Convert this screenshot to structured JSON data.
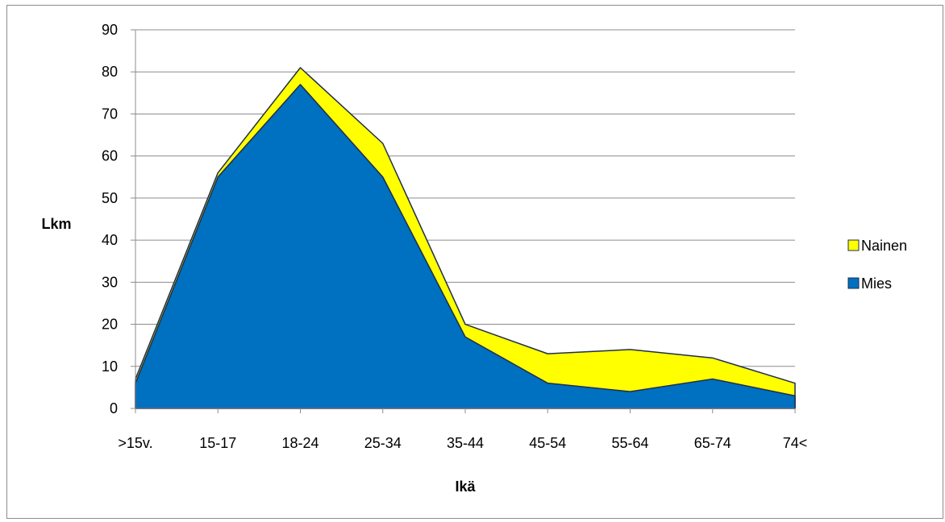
{
  "chart_data": {
    "type": "area",
    "stacked": true,
    "categories": [
      ">15v.",
      "15-17",
      "18-24",
      "25-34",
      "35-44",
      "45-54",
      "55-64",
      "65-74",
      "74<"
    ],
    "series": [
      {
        "name": "Mies",
        "color": "#0070C0",
        "values": [
          6,
          55,
          77,
          55,
          17,
          6,
          4,
          7,
          3
        ]
      },
      {
        "name": "Nainen",
        "color": "#FFFF00",
        "values": [
          1,
          1,
          4,
          8,
          3,
          7,
          10,
          5,
          3
        ]
      }
    ],
    "xlabel": "Ikä",
    "ylabel": "Lkm",
    "ylim": [
      0,
      90
    ],
    "yticks": [
      0,
      10,
      20,
      30,
      40,
      50,
      60,
      70,
      80,
      90
    ],
    "grid": true,
    "legend": "right",
    "outline_color": "#1f2d4d"
  }
}
